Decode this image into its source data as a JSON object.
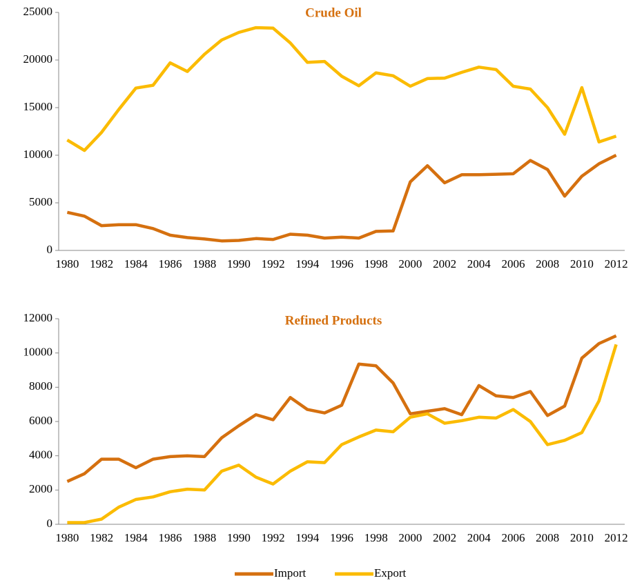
{
  "chart_data": [
    {
      "type": "line",
      "title": "Crude Oil",
      "categories": [
        "1980",
        null,
        "1982",
        null,
        "1984",
        null,
        "1986",
        null,
        "1988",
        null,
        "1990",
        null,
        "1992",
        null,
        "1994",
        null,
        "1996",
        null,
        "1998",
        null,
        "2000",
        null,
        "2002",
        null,
        "2004",
        null,
        "2006",
        null,
        "2008",
        null,
        "2010",
        null,
        "2012"
      ],
      "series": [
        {
          "color": "#d5700f",
          "values": [
            4000,
            3600,
            2600,
            2700,
            2700,
            2300,
            1600,
            1350,
            1200,
            1000,
            1050,
            1250,
            1150,
            1700,
            1600,
            1300,
            1400,
            1300,
            2000,
            2050,
            7200,
            8900,
            7100,
            7950,
            7950,
            8000,
            8050,
            9450,
            8500,
            5700,
            7800,
            9100,
            10000
          ]
        },
        {
          "color": "#fbbb00",
          "values": [
            11600,
            10500,
            12400,
            14800,
            17050,
            17350,
            19700,
            18800,
            20600,
            22100,
            22900,
            23400,
            23350,
            21800,
            19750,
            19850,
            18300,
            17300,
            18650,
            18350,
            17250,
            18050,
            18100,
            18700,
            19250,
            19000,
            17250,
            16950,
            15000,
            12200,
            17100,
            11400,
            12000
          ]
        }
      ],
      "ylim": [
        0,
        25000
      ],
      "yticks": [
        0,
        5000,
        10000,
        15000,
        20000,
        25000
      ]
    },
    {
      "type": "line",
      "title": "Refined Products",
      "categories": [
        "1980",
        null,
        "1982",
        null,
        "1984",
        null,
        "1986",
        null,
        "1988",
        null,
        "1990",
        null,
        "1992",
        null,
        "1994",
        null,
        "1996",
        null,
        "1998",
        null,
        "2000",
        null,
        "2002",
        null,
        "2004",
        null,
        "2006",
        null,
        "2008",
        null,
        "2010",
        null,
        "2012"
      ],
      "series": [
        {
          "color": "#d5700f",
          "values": [
            2500,
            2950,
            3800,
            3800,
            3300,
            3800,
            3950,
            4000,
            3950,
            5050,
            5750,
            6400,
            6100,
            7400,
            6700,
            6500,
            6950,
            9350,
            9250,
            8250,
            6450,
            6600,
            6750,
            6400,
            8100,
            7500,
            7400,
            7750,
            6350,
            6900,
            9700,
            10550,
            11000
          ]
        },
        {
          "color": "#fbbb00",
          "values": [
            100,
            100,
            300,
            1000,
            1450,
            1600,
            1900,
            2050,
            2000,
            3100,
            3450,
            2750,
            2350,
            3100,
            3650,
            3600,
            4650,
            5100,
            5500,
            5400,
            6250,
            6450,
            5900,
            6050,
            6250,
            6200,
            6700,
            6000,
            4650,
            4900,
            5350,
            7200,
            10500
          ]
        }
      ],
      "ylim": [
        0,
        12000
      ],
      "yticks": [
        0,
        2000,
        4000,
        6000,
        8000,
        10000,
        12000
      ]
    }
  ],
  "legend": [
    {
      "name": "Import",
      "color": "#d5700f"
    },
    {
      "name": "Export",
      "color": "#fbbb00"
    }
  ]
}
